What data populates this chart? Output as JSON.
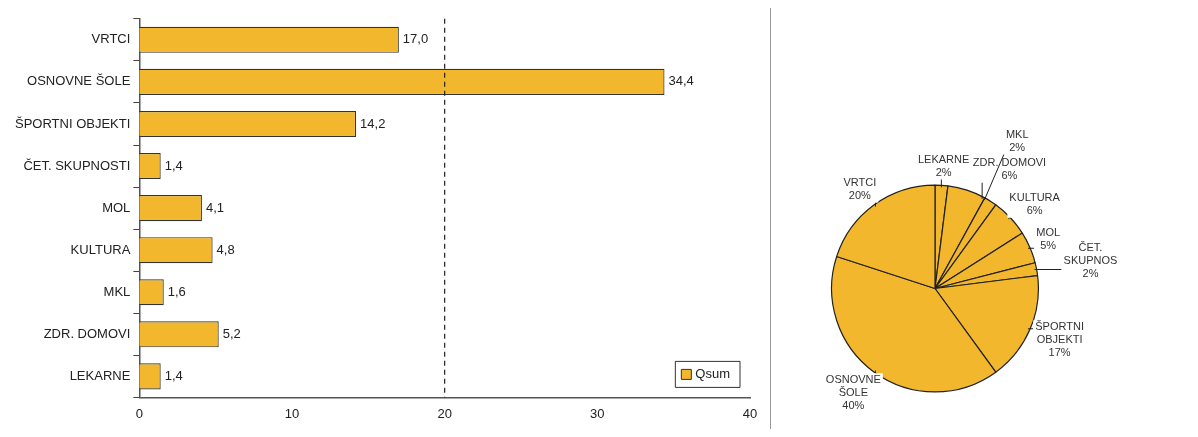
{
  "chart_data": [
    {
      "type": "bar",
      "orientation": "horizontal",
      "categories": [
        "VRTCI",
        "OSNOVNE ŠOLE",
        "ŠPORTNI OBJEKTI",
        "ČET. SKUPNOSTI",
        "MOL",
        "KULTURA",
        "MKL",
        "ZDR. DOMOVI",
        "LEKARNE"
      ],
      "series": [
        {
          "name": "Qsum",
          "color": "#f2b72c",
          "values": [
            17.0,
            34.4,
            14.2,
            1.4,
            4.1,
            4.8,
            1.6,
            5.2,
            1.4
          ],
          "value_labels": [
            "17,0",
            "34,4",
            "14,2",
            "1,4",
            "4,1",
            "4,8",
            "1,6",
            "5,2",
            "1,4"
          ]
        }
      ],
      "xlim": [
        0,
        40
      ],
      "xticks": [
        0,
        10,
        20,
        30,
        40
      ],
      "grid": false,
      "legend": "bottom right",
      "ref_lines": [
        {
          "axis": "x",
          "value": 20,
          "line_style": "dashed",
          "color": "#222222"
        }
      ]
    },
    {
      "type": "pie",
      "categories": [
        "LEKARNE",
        "ZDR. DOMOVI",
        "MKL",
        "KULTURA",
        "MOL",
        "ČET. SKUPNOS",
        "ŠPORTNI OBJEKTI",
        "OSNOVNE ŠOLE",
        "VRTCI"
      ],
      "values": [
        2,
        6,
        2,
        6,
        5,
        2,
        17,
        40,
        20
      ],
      "colors": [
        "#f2b72c",
        "#f2b72c",
        "#f2b72c",
        "#f2b72c",
        "#f2b72c",
        "#f2b72c",
        "#f2b72c",
        "#f2b72c",
        "#f2b72c"
      ],
      "value_labels": [
        "2%",
        "6%",
        "2%",
        "6%",
        "5%",
        "2%",
        "17%",
        "40%",
        "20%"
      ]
    }
  ]
}
